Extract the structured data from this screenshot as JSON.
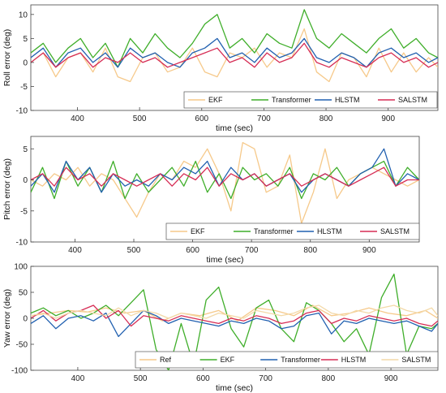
{
  "chart_data": [
    {
      "type": "line",
      "ylabel": "Roll error (deg)",
      "xlabel": "time (sec)",
      "xlim": [
        325,
        980
      ],
      "ylim": [
        -10,
        12
      ],
      "xticks": [
        400,
        500,
        600,
        700,
        800,
        900
      ],
      "yticks": [
        -10,
        -5,
        0,
        5,
        10
      ],
      "grid": false,
      "legend_position": "bottom-right",
      "series": [
        {
          "name": "EKF",
          "color": "#f6c98a",
          "x": [
            325,
            345,
            365,
            385,
            405,
            425,
            445,
            465,
            485,
            505,
            525,
            545,
            565,
            585,
            605,
            625,
            645,
            665,
            685,
            705,
            725,
            745,
            765,
            785,
            805,
            825,
            845,
            865,
            885,
            905,
            925,
            945,
            965,
            980
          ],
          "y": [
            0,
            2,
            -3,
            1,
            2,
            -2,
            3,
            -3,
            -4,
            1,
            2,
            -2,
            -1,
            3,
            -2,
            -3,
            2,
            1,
            3,
            -1,
            2,
            1,
            7,
            -2,
            -4,
            2,
            1,
            -3,
            3,
            -2,
            2,
            -2,
            1,
            -1
          ]
        },
        {
          "name": "Transformer",
          "color": "#3fae2a",
          "x": [
            325,
            345,
            365,
            385,
            405,
            425,
            445,
            465,
            485,
            505,
            525,
            545,
            565,
            585,
            605,
            625,
            645,
            665,
            685,
            705,
            725,
            745,
            765,
            785,
            805,
            825,
            845,
            865,
            885,
            905,
            925,
            945,
            965,
            980
          ],
          "y": [
            2,
            4,
            0,
            3,
            5,
            1,
            4,
            -1,
            5,
            2,
            6,
            3,
            1,
            4,
            8,
            10,
            3,
            5,
            2,
            6,
            4,
            3,
            11,
            5,
            3,
            6,
            4,
            2,
            5,
            7,
            3,
            5,
            2,
            1
          ]
        },
        {
          "name": "HLSTM",
          "color": "#2160b0",
          "x": [
            325,
            345,
            365,
            385,
            405,
            425,
            445,
            465,
            485,
            505,
            525,
            545,
            565,
            585,
            605,
            625,
            645,
            665,
            685,
            705,
            725,
            745,
            765,
            785,
            805,
            825,
            845,
            865,
            885,
            905,
            925,
            945,
            965,
            980
          ],
          "y": [
            1,
            3,
            -1,
            2,
            3,
            0,
            2,
            -1,
            3,
            1,
            2,
            0,
            -1,
            2,
            3,
            5,
            1,
            2,
            0,
            3,
            1,
            2,
            5,
            1,
            0,
            2,
            1,
            -1,
            2,
            3,
            1,
            2,
            0,
            1
          ]
        },
        {
          "name": "SALSTM",
          "color": "#d62d55",
          "x": [
            325,
            345,
            365,
            385,
            405,
            425,
            445,
            465,
            485,
            505,
            525,
            545,
            565,
            585,
            605,
            625,
            645,
            665,
            685,
            705,
            725,
            745,
            765,
            785,
            805,
            825,
            845,
            865,
            885,
            905,
            925,
            945,
            965,
            980
          ],
          "y": [
            0,
            2,
            -1,
            1,
            2,
            -1,
            1,
            0,
            2,
            0,
            1,
            -1,
            0,
            1,
            2,
            3,
            0,
            1,
            -1,
            2,
            0,
            1,
            4,
            0,
            -1,
            1,
            0,
            -1,
            1,
            2,
            0,
            1,
            -1,
            0
          ]
        }
      ]
    },
    {
      "type": "line",
      "ylabel": "Pitch error (deg)",
      "xlabel": "time (sec)",
      "xlim": [
        325,
        985
      ],
      "ylim": [
        -10,
        7
      ],
      "xticks": [
        400,
        500,
        600,
        700,
        800,
        900
      ],
      "yticks": [
        -10,
        -5,
        0,
        5
      ],
      "grid": false,
      "legend_position": "bottom-right",
      "series": [
        {
          "name": "EKF",
          "color": "#f6c98a",
          "x": [
            325,
            345,
            365,
            385,
            405,
            425,
            445,
            465,
            485,
            505,
            525,
            545,
            565,
            585,
            605,
            625,
            645,
            665,
            685,
            705,
            725,
            745,
            765,
            785,
            805,
            825,
            845,
            865,
            885,
            905,
            925,
            945,
            965,
            985
          ],
          "y": [
            0,
            -1,
            1,
            0,
            2,
            -1,
            1,
            0,
            -3,
            -6,
            -2,
            1,
            0,
            3,
            2,
            5,
            1,
            -5,
            6,
            5,
            -2,
            -1,
            4,
            -7,
            -2,
            5,
            -3,
            0,
            1,
            2,
            1,
            0,
            -1,
            0
          ]
        },
        {
          "name": "Transformer",
          "color": "#3fae2a",
          "x": [
            325,
            345,
            365,
            385,
            405,
            425,
            445,
            465,
            485,
            505,
            525,
            545,
            565,
            585,
            605,
            625,
            645,
            665,
            685,
            705,
            725,
            745,
            765,
            785,
            805,
            825,
            845,
            865,
            885,
            905,
            925,
            945,
            965,
            985
          ],
          "y": [
            -2,
            2,
            -3,
            3,
            -1,
            2,
            -2,
            3,
            -3,
            1,
            -2,
            0,
            2,
            -1,
            3,
            -2,
            1,
            -3,
            2,
            0,
            1,
            -1,
            2,
            -3,
            1,
            0,
            2,
            -1,
            1,
            2,
            3,
            -1,
            2,
            0
          ]
        },
        {
          "name": "HLSTM",
          "color": "#2160b0",
          "x": [
            325,
            345,
            365,
            385,
            405,
            425,
            445,
            465,
            485,
            505,
            525,
            545,
            565,
            585,
            605,
            625,
            645,
            665,
            685,
            705,
            725,
            745,
            765,
            785,
            805,
            825,
            845,
            865,
            885,
            905,
            925,
            945,
            965,
            985
          ],
          "y": [
            -1,
            1,
            -2,
            3,
            0,
            2,
            -2,
            1,
            -1,
            0,
            -1,
            1,
            0,
            2,
            1,
            3,
            -1,
            2,
            0,
            1,
            -1,
            0,
            1,
            -2,
            0,
            1,
            0,
            -1,
            1,
            2,
            5,
            -1,
            1,
            0
          ]
        },
        {
          "name": "SALSTM",
          "color": "#d62d55",
          "x": [
            325,
            345,
            365,
            385,
            405,
            425,
            445,
            465,
            485,
            505,
            525,
            545,
            565,
            585,
            605,
            625,
            645,
            665,
            685,
            705,
            725,
            745,
            765,
            785,
            805,
            825,
            845,
            865,
            885,
            905,
            925,
            945,
            965,
            985
          ],
          "y": [
            0,
            1,
            -1,
            2,
            0,
            1,
            -1,
            1,
            0,
            -1,
            0,
            1,
            -1,
            1,
            0,
            2,
            -1,
            1,
            0,
            1,
            -1,
            0,
            1,
            -1,
            0,
            1,
            0,
            -1,
            0,
            1,
            2,
            -1,
            0,
            0
          ]
        }
      ]
    },
    {
      "type": "line",
      "ylabel": "Yaw error (deg)",
      "xlabel": "time (sec)",
      "xlim": [
        325,
        975
      ],
      "ylim": [
        -100,
        100
      ],
      "xticks": [
        400,
        500,
        600,
        700,
        800,
        900
      ],
      "yticks": [
        -100,
        -50,
        0,
        50,
        100
      ],
      "grid": false,
      "legend_position": "bottom-right",
      "series": [
        {
          "name": "Ref",
          "color": "#f6c98a",
          "x": [
            325,
            355,
            385,
            415,
            445,
            475,
            505,
            535,
            565,
            595,
            625,
            655,
            685,
            715,
            745,
            775,
            805,
            835,
            865,
            895,
            925,
            955,
            975
          ],
          "y": [
            5,
            10,
            15,
            12,
            20,
            10,
            15,
            -5,
            10,
            5,
            15,
            -5,
            20,
            15,
            5,
            25,
            5,
            10,
            20,
            10,
            5,
            15,
            0
          ]
        },
        {
          "name": "EKF",
          "color": "#3fae2a",
          "x": [
            325,
            345,
            365,
            385,
            405,
            425,
            445,
            465,
            485,
            505,
            525,
            545,
            565,
            585,
            605,
            625,
            645,
            665,
            685,
            705,
            725,
            745,
            765,
            785,
            805,
            825,
            845,
            865,
            885,
            905,
            925,
            945,
            965,
            975
          ],
          "y": [
            10,
            20,
            5,
            15,
            0,
            10,
            25,
            5,
            30,
            55,
            -60,
            -100,
            -10,
            -90,
            35,
            60,
            -20,
            -55,
            20,
            35,
            -20,
            -45,
            30,
            15,
            -10,
            -45,
            -20,
            -70,
            40,
            85,
            -70,
            -15,
            -20,
            -10
          ]
        },
        {
          "name": "Transformer",
          "color": "#2160b0",
          "x": [
            325,
            345,
            365,
            385,
            405,
            425,
            445,
            465,
            485,
            505,
            525,
            545,
            565,
            585,
            605,
            625,
            645,
            665,
            685,
            705,
            725,
            745,
            765,
            785,
            805,
            825,
            845,
            865,
            885,
            905,
            925,
            945,
            965,
            975
          ],
          "y": [
            -10,
            5,
            -20,
            0,
            5,
            -5,
            10,
            -35,
            -10,
            15,
            5,
            -10,
            0,
            -5,
            -10,
            -15,
            -5,
            -10,
            0,
            -5,
            -20,
            -15,
            5,
            10,
            -30,
            -5,
            -10,
            0,
            -5,
            -10,
            -5,
            -15,
            -25,
            -10
          ]
        },
        {
          "name": "HLSTM",
          "color": "#d62d55",
          "x": [
            325,
            345,
            365,
            385,
            405,
            425,
            445,
            465,
            485,
            505,
            525,
            545,
            565,
            585,
            605,
            625,
            645,
            665,
            685,
            705,
            725,
            745,
            765,
            785,
            805,
            825,
            845,
            865,
            885,
            905,
            925,
            945,
            965,
            975
          ],
          "y": [
            0,
            15,
            -5,
            10,
            15,
            25,
            0,
            15,
            -15,
            5,
            0,
            -5,
            5,
            0,
            -5,
            -10,
            0,
            -5,
            5,
            0,
            -10,
            -5,
            10,
            15,
            -10,
            0,
            -5,
            5,
            0,
            -5,
            0,
            -10,
            -15,
            -5
          ]
        },
        {
          "name": "SALSTM",
          "color": "#f3d9a8",
          "x": [
            325,
            345,
            365,
            385,
            405,
            425,
            445,
            465,
            485,
            505,
            525,
            545,
            565,
            585,
            605,
            625,
            645,
            665,
            685,
            705,
            725,
            745,
            765,
            785,
            805,
            825,
            845,
            865,
            885,
            905,
            925,
            945,
            965,
            975
          ],
          "y": [
            5,
            10,
            0,
            10,
            15,
            10,
            5,
            20,
            5,
            15,
            10,
            0,
            10,
            5,
            0,
            10,
            5,
            0,
            15,
            10,
            5,
            10,
            20,
            25,
            10,
            5,
            15,
            10,
            20,
            25,
            15,
            10,
            20,
            5
          ]
        }
      ]
    }
  ]
}
